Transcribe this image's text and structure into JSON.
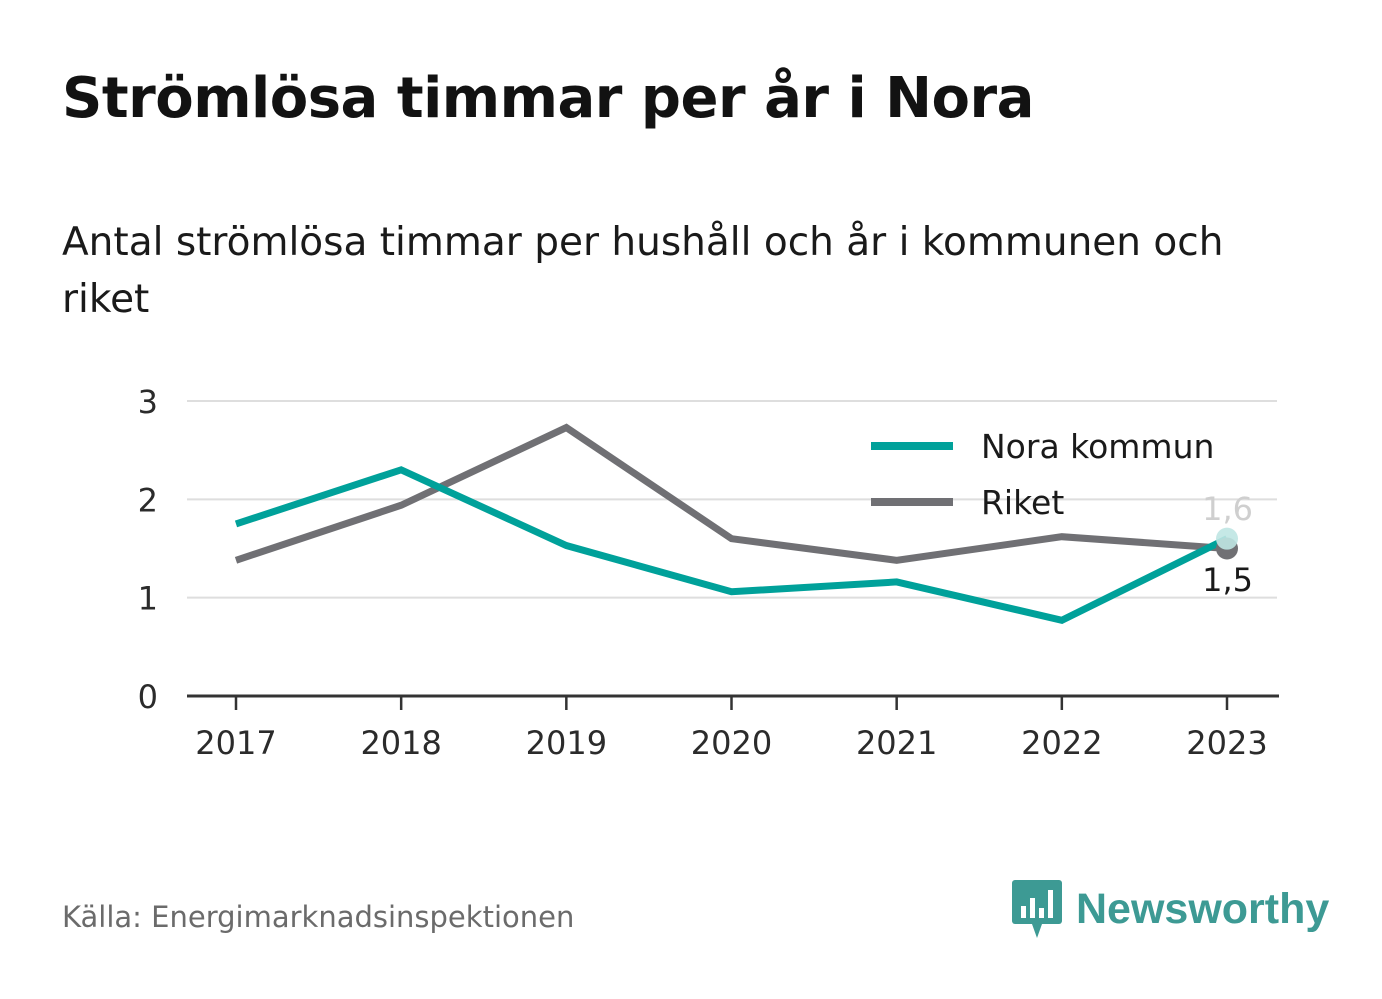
{
  "header": {
    "title": "Strömlösa timmar per år i Nora",
    "subtitle": "Antal strömlösa timmar per hushåll och år i kommunen och riket"
  },
  "footer": {
    "source": "Källa: Energimarknadsinspektionen",
    "brand": "Newsworthy",
    "brand_icon": "bar-chart-speech-bubble-icon"
  },
  "chart_data": {
    "type": "line",
    "title": "Strömlösa timmar per år i Nora",
    "subtitle": "Antal strömlösa timmar per hushåll och år i kommunen och riket",
    "x": [
      "2017",
      "2018",
      "2019",
      "2020",
      "2021",
      "2022",
      "2023"
    ],
    "yticks": [
      "0",
      "1",
      "2",
      "3"
    ],
    "ylim": [
      0,
      3
    ],
    "grid": true,
    "legend": "top-right",
    "series": [
      {
        "name": "Nora kommun",
        "color": "#00a19a",
        "values": [
          1.75,
          2.3,
          1.53,
          1.06,
          1.16,
          0.77,
          1.6
        ],
        "end_label": "1,6"
      },
      {
        "name": "Riket",
        "color": "#707074",
        "values": [
          1.38,
          1.94,
          2.73,
          1.6,
          1.38,
          1.62,
          1.5
        ],
        "end_label": "1,5"
      }
    ]
  }
}
